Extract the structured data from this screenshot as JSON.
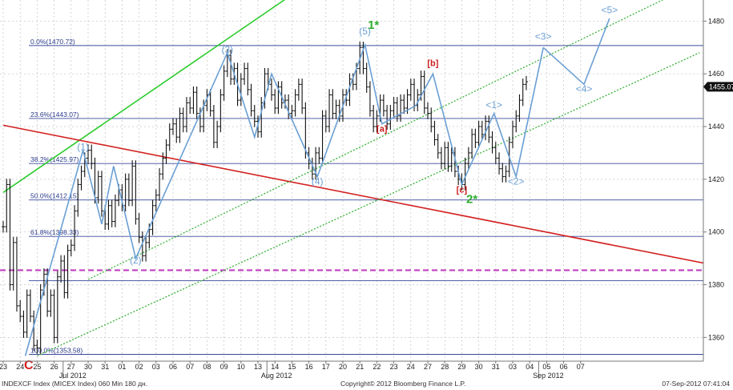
{
  "footer": {
    "left": "INDEXCF Index (MICEX Index) 060 Min 180 дн.",
    "center": "Copyright© 2012 Bloomberg Finance L.P.",
    "right": "07-Sep-2012 07:41:04"
  },
  "chart_data": {
    "type": "candlestick",
    "y_axis": {
      "position": "right",
      "ticks": [
        1360,
        1380,
        1400,
        1420,
        1440,
        1460,
        1480
      ],
      "range": [
        1351,
        1488
      ]
    },
    "last_price": "1455.07",
    "x_axis": {
      "ticks": [
        "23",
        "24",
        "25",
        "26",
        "27",
        "30",
        "31",
        "01",
        "02",
        "03",
        "06",
        "07",
        "08",
        "09",
        "10",
        "13",
        "14",
        "15",
        "16",
        "17",
        "20",
        "21",
        "22",
        "23",
        "24",
        "27",
        "28",
        "29",
        "30",
        "31",
        "03",
        "04",
        "05",
        "06",
        "07"
      ],
      "month_labels": [
        {
          "label": "Jul 2012",
          "after_tick": 4
        },
        {
          "label": "Aug 2012",
          "after_tick": 16
        },
        {
          "label": "Sep 2012",
          "after_tick": 32
        }
      ]
    },
    "fibonacci_levels": [
      {
        "label": "0.0%(1470.72)",
        "value": 1470.72
      },
      {
        "label": "23.6%(1443.07)",
        "value": 1443.07
      },
      {
        "label": "38.2%(1425.97)",
        "value": 1425.97
      },
      {
        "label": "50.0%(1412.15)",
        "value": 1412.15
      },
      {
        "label": "61.8%(1398.33)",
        "value": 1398.33
      },
      {
        "label": "100.0%(1353.58)",
        "value": 1353.58
      }
    ],
    "extra_horizontal_lines": [
      1381.5
    ],
    "support_level_dashed": 1385.5,
    "trendlines": [
      {
        "color": "#2ecc2e",
        "style": "solid",
        "from": [
          0,
          1415
        ],
        "to": [
          17,
          1490
        ]
      },
      {
        "color": "#d42020",
        "style": "solid",
        "from": [
          0,
          1440.5
        ],
        "to": [
          43,
          1386
        ]
      },
      {
        "color": "#39b239",
        "style": "dotted",
        "from": [
          2,
          1353
        ],
        "to": [
          41,
          1468
        ]
      },
      {
        "color": "#39b239",
        "style": "dotted",
        "from": [
          5,
          1382
        ],
        "to": [
          42,
          1498
        ]
      }
    ],
    "price_path": [
      [
        0,
        1402
      ],
      [
        0.2,
        1418
      ],
      [
        0.4,
        1380
      ],
      [
        0.6,
        1396
      ],
      [
        0.8,
        1372
      ],
      [
        1,
        1368
      ],
      [
        1.2,
        1362
      ],
      [
        1.4,
        1376
      ],
      [
        1.6,
        1368
      ],
      [
        1.8,
        1357
      ],
      [
        2,
        1356
      ],
      [
        2.2,
        1378
      ],
      [
        2.4,
        1384
      ],
      [
        2.6,
        1370
      ],
      [
        2.8,
        1376
      ],
      [
        3,
        1360
      ],
      [
        3.2,
        1383
      ],
      [
        3.4,
        1389
      ],
      [
        3.6,
        1377
      ],
      [
        3.8,
        1393
      ],
      [
        4,
        1395
      ],
      [
        4.2,
        1408
      ],
      [
        4.4,
        1418
      ],
      [
        4.6,
        1423
      ],
      [
        4.8,
        1428
      ],
      [
        5,
        1431
      ],
      [
        5.2,
        1426
      ],
      [
        5.4,
        1413
      ],
      [
        5.6,
        1421
      ],
      [
        5.8,
        1408
      ],
      [
        6,
        1403
      ],
      [
        6.2,
        1410
      ],
      [
        6.4,
        1404
      ],
      [
        6.6,
        1412
      ],
      [
        6.8,
        1416
      ],
      [
        7,
        1410
      ],
      [
        7.2,
        1420
      ],
      [
        7.4,
        1412
      ],
      [
        7.6,
        1425
      ],
      [
        7.8,
        1405
      ],
      [
        8,
        1398
      ],
      [
        8.2,
        1391
      ],
      [
        8.4,
        1396
      ],
      [
        8.6,
        1401
      ],
      [
        8.8,
        1410
      ],
      [
        9,
        1414
      ],
      [
        9.2,
        1422
      ],
      [
        9.4,
        1428
      ],
      [
        9.6,
        1433
      ],
      [
        9.8,
        1439
      ],
      [
        10,
        1441
      ],
      [
        10.2,
        1436
      ],
      [
        10.4,
        1445
      ],
      [
        10.6,
        1440
      ],
      [
        10.8,
        1449
      ],
      [
        11,
        1447
      ],
      [
        11.2,
        1453
      ],
      [
        11.4,
        1445
      ],
      [
        11.6,
        1440
      ],
      [
        11.8,
        1448
      ],
      [
        12,
        1452
      ],
      [
        12.2,
        1446
      ],
      [
        12.4,
        1434
      ],
      [
        12.6,
        1440
      ],
      [
        12.8,
        1452
      ],
      [
        13,
        1461
      ],
      [
        13.2,
        1467
      ],
      [
        13.4,
        1458
      ],
      [
        13.6,
        1462
      ],
      [
        13.8,
        1450
      ],
      [
        14,
        1458
      ],
      [
        14.2,
        1462
      ],
      [
        14.4,
        1454
      ],
      [
        14.6,
        1446
      ],
      [
        14.8,
        1442
      ],
      [
        15,
        1438
      ],
      [
        15.2,
        1449
      ],
      [
        15.4,
        1460
      ],
      [
        15.6,
        1456
      ],
      [
        15.8,
        1452
      ],
      [
        16,
        1447
      ],
      [
        16.2,
        1455
      ],
      [
        16.4,
        1449
      ],
      [
        16.6,
        1450
      ],
      [
        16.8,
        1445
      ],
      [
        17,
        1446
      ],
      [
        17.2,
        1452
      ],
      [
        17.4,
        1456
      ],
      [
        17.6,
        1447
      ],
      [
        17.8,
        1430
      ],
      [
        18,
        1426
      ],
      [
        18.2,
        1422
      ],
      [
        18.4,
        1430
      ],
      [
        18.6,
        1428
      ],
      [
        18.8,
        1444
      ],
      [
        19,
        1440
      ],
      [
        19.2,
        1452
      ],
      [
        19.4,
        1445
      ],
      [
        19.6,
        1448
      ],
      [
        19.8,
        1444
      ],
      [
        20,
        1452
      ],
      [
        20.2,
        1450
      ],
      [
        20.4,
        1458
      ],
      [
        20.6,
        1456
      ],
      [
        20.8,
        1462
      ],
      [
        21,
        1470
      ],
      [
        21.2,
        1462
      ],
      [
        21.4,
        1455
      ],
      [
        21.6,
        1446
      ],
      [
        21.8,
        1440
      ],
      [
        22,
        1444
      ],
      [
        22.2,
        1450
      ],
      [
        22.4,
        1446
      ],
      [
        22.6,
        1441
      ],
      [
        22.8,
        1446
      ],
      [
        23,
        1449
      ],
      [
        23.2,
        1444
      ],
      [
        23.4,
        1450
      ],
      [
        23.6,
        1447
      ],
      [
        23.8,
        1452
      ],
      [
        24,
        1456
      ],
      [
        24.2,
        1448
      ],
      [
        24.4,
        1452
      ],
      [
        24.6,
        1459
      ],
      [
        24.8,
        1447
      ],
      [
        25,
        1445
      ],
      [
        25.2,
        1440
      ],
      [
        25.4,
        1435
      ],
      [
        25.6,
        1430
      ],
      [
        25.8,
        1426
      ],
      [
        26,
        1432
      ],
      [
        26.2,
        1425
      ],
      [
        26.4,
        1430
      ],
      [
        26.6,
        1423
      ],
      [
        26.8,
        1420
      ],
      [
        27,
        1418
      ],
      [
        27.2,
        1426
      ],
      [
        27.4,
        1430
      ],
      [
        27.6,
        1437
      ],
      [
        27.8,
        1434
      ],
      [
        28,
        1440
      ],
      [
        28.2,
        1437
      ],
      [
        28.4,
        1442
      ],
      [
        28.6,
        1436
      ],
      [
        28.8,
        1432
      ],
      [
        29,
        1428
      ],
      [
        29.2,
        1424
      ],
      [
        29.4,
        1421
      ],
      [
        29.6,
        1423
      ],
      [
        29.8,
        1434
      ],
      [
        30,
        1440
      ],
      [
        30.2,
        1444
      ],
      [
        30.4,
        1450
      ],
      [
        30.6,
        1456
      ],
      [
        30.8,
        1457
      ]
    ],
    "wave_path": [
      [
        1.3,
        1353
      ],
      [
        4.7,
        1431
      ],
      [
        5.8,
        1403
      ],
      [
        6.5,
        1425
      ],
      [
        7.8,
        1390
      ],
      [
        13.2,
        1468
      ],
      [
        14.8,
        1436
      ],
      [
        15.8,
        1460
      ],
      [
        18.5,
        1421
      ],
      [
        21.3,
        1471
      ],
      [
        22.3,
        1441
      ],
      [
        24.3,
        1448
      ],
      [
        25.3,
        1460
      ],
      [
        27.0,
        1418
      ],
      [
        28.9,
        1445
      ],
      [
        30.2,
        1421
      ],
      [
        31.8,
        1470
      ],
      [
        34.2,
        1456
      ],
      [
        35.7,
        1481
      ]
    ],
    "projection_start_index": 16,
    "wave_labels": [
      {
        "text": "(1)",
        "at": [
          4.7,
          1431
        ],
        "kind": "blue"
      },
      {
        "text": "(2)",
        "at": [
          7.8,
          1388
        ],
        "kind": "blue"
      },
      {
        "text": "(3)",
        "at": [
          13.2,
          1468
        ],
        "kind": "blue"
      },
      {
        "text": "(4)",
        "at": [
          18.5,
          1418
        ],
        "kind": "blue"
      },
      {
        "text": "(5)",
        "at": [
          21.3,
          1475
        ],
        "kind": "blue"
      },
      {
        "text": "[a]",
        "at": [
          22.3,
          1438
        ],
        "kind": "red"
      },
      {
        "text": "[b]",
        "at": [
          25.3,
          1463
        ],
        "kind": "red"
      },
      {
        "text": "[c]",
        "at": [
          27.0,
          1415
        ],
        "kind": "red"
      },
      {
        "text": "<1>",
        "at": [
          28.9,
          1447
        ],
        "kind": "blue"
      },
      {
        "text": "<2>",
        "at": [
          30.2,
          1418
        ],
        "kind": "blue"
      },
      {
        "text": "<3>",
        "at": [
          31.8,
          1473
        ],
        "kind": "blue"
      },
      {
        "text": "<4>",
        "at": [
          34.2,
          1453
        ],
        "kind": "blue"
      },
      {
        "text": "<5>",
        "at": [
          35.7,
          1483
        ],
        "kind": "blue"
      },
      {
        "text": "1*",
        "at": [
          21.8,
          1477
        ],
        "kind": "green"
      },
      {
        "text": "2*",
        "at": [
          27.6,
          1411
        ],
        "kind": "green"
      },
      {
        "text": "C",
        "at": [
          1.5,
          1348
        ],
        "kind": "c"
      }
    ]
  }
}
